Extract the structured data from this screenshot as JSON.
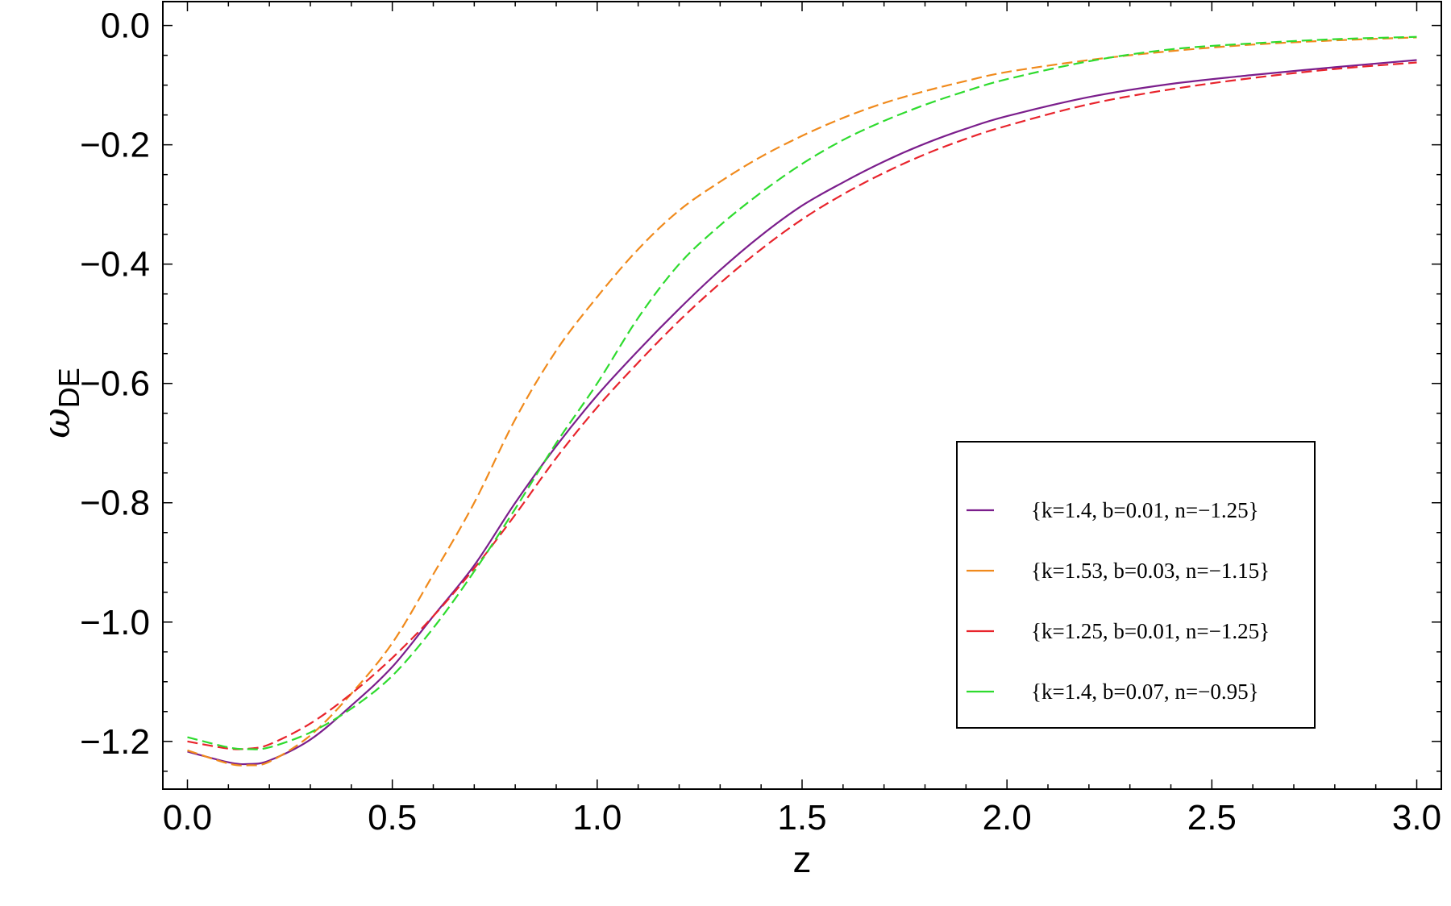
{
  "chart_data": {
    "type": "line",
    "xlabel": "z",
    "ylabel": "ωDE",
    "ylabel_symbol": "ω",
    "ylabel_subscript": "DE",
    "xlim": [
      -0.06,
      3.06
    ],
    "ylim": [
      -1.28,
      0.04
    ],
    "x_ticks": [
      0.0,
      0.5,
      1.0,
      1.5,
      2.0,
      2.5,
      3.0
    ],
    "x_tick_labels": [
      "0.0",
      "0.5",
      "1.0",
      "1.5",
      "2.0",
      "2.5",
      "3.0"
    ],
    "y_ticks": [
      0.0,
      -0.2,
      -0.4,
      -0.6,
      -0.8,
      -1.0,
      -1.2
    ],
    "y_tick_labels": [
      "0.0",
      "−0.2",
      "−0.4",
      "−0.6",
      "−0.8",
      "−1.0",
      "−1.2"
    ],
    "grid": false,
    "legend_position": "lower-right",
    "series": [
      {
        "name": "{k=1.4, b=0.01, n=−1.25}",
        "color": "#7B1E8C",
        "style": "solid",
        "x": [
          0.0,
          0.1,
          0.15,
          0.2,
          0.3,
          0.4,
          0.5,
          0.6,
          0.7,
          0.8,
          0.9,
          1.0,
          1.1,
          1.2,
          1.3,
          1.4,
          1.5,
          1.6,
          1.7,
          1.8,
          1.9,
          2.0,
          2.2,
          2.4,
          2.6,
          2.8,
          3.0
        ],
        "y": [
          -1.217,
          -1.235,
          -1.238,
          -1.232,
          -1.197,
          -1.14,
          -1.075,
          -0.99,
          -0.905,
          -0.8,
          -0.705,
          -0.62,
          -0.545,
          -0.475,
          -0.41,
          -0.352,
          -0.302,
          -0.263,
          -0.228,
          -0.198,
          -0.173,
          -0.152,
          -0.12,
          -0.098,
          -0.083,
          -0.07,
          -0.058
        ]
      },
      {
        "name": "{k=1.53, b=0.03, n=−1.15}",
        "color": "#F08A1C",
        "style": "dashed",
        "x": [
          0.0,
          0.1,
          0.15,
          0.2,
          0.3,
          0.4,
          0.5,
          0.6,
          0.7,
          0.8,
          0.9,
          1.0,
          1.1,
          1.2,
          1.3,
          1.4,
          1.5,
          1.6,
          1.7,
          1.8,
          1.9,
          2.0,
          2.2,
          2.4,
          2.6,
          2.8,
          3.0
        ],
        "y": [
          -1.215,
          -1.237,
          -1.24,
          -1.234,
          -1.19,
          -1.12,
          -1.035,
          -0.92,
          -0.8,
          -0.66,
          -0.545,
          -0.455,
          -0.375,
          -0.31,
          -0.262,
          -0.22,
          -0.185,
          -0.155,
          -0.13,
          -0.11,
          -0.093,
          -0.078,
          -0.058,
          -0.043,
          -0.032,
          -0.025,
          -0.02
        ]
      },
      {
        "name": "{k=1.25, b=0.01, n=−1.25}",
        "color": "#E8242C",
        "style": "dashed",
        "x": [
          0.0,
          0.1,
          0.15,
          0.2,
          0.3,
          0.4,
          0.5,
          0.6,
          0.7,
          0.8,
          0.9,
          1.0,
          1.1,
          1.2,
          1.3,
          1.4,
          1.5,
          1.6,
          1.7,
          1.8,
          1.9,
          2.0,
          2.2,
          2.4,
          2.6,
          2.8,
          3.0
        ],
        "y": [
          -1.2,
          -1.212,
          -1.212,
          -1.205,
          -1.17,
          -1.12,
          -1.06,
          -0.99,
          -0.91,
          -0.82,
          -0.725,
          -0.64,
          -0.565,
          -0.495,
          -0.432,
          -0.375,
          -0.325,
          -0.283,
          -0.247,
          -0.216,
          -0.19,
          -0.168,
          -0.132,
          -0.107,
          -0.088,
          -0.073,
          -0.062
        ]
      },
      {
        "name": "{k=1.4, b=0.07, n=−0.95}",
        "color": "#2EDB2E",
        "style": "dashed",
        "x": [
          0.0,
          0.1,
          0.15,
          0.2,
          0.3,
          0.4,
          0.5,
          0.6,
          0.7,
          0.8,
          0.9,
          1.0,
          1.1,
          1.2,
          1.3,
          1.4,
          1.5,
          1.6,
          1.7,
          1.8,
          1.9,
          2.0,
          2.2,
          2.4,
          2.6,
          2.8,
          3.0
        ],
        "y": [
          -1.193,
          -1.21,
          -1.213,
          -1.21,
          -1.185,
          -1.145,
          -1.09,
          -1.01,
          -0.915,
          -0.81,
          -0.7,
          -0.6,
          -0.49,
          -0.4,
          -0.335,
          -0.28,
          -0.232,
          -0.192,
          -0.16,
          -0.133,
          -0.11,
          -0.09,
          -0.06,
          -0.04,
          -0.03,
          -0.023,
          -0.019
        ]
      }
    ]
  }
}
